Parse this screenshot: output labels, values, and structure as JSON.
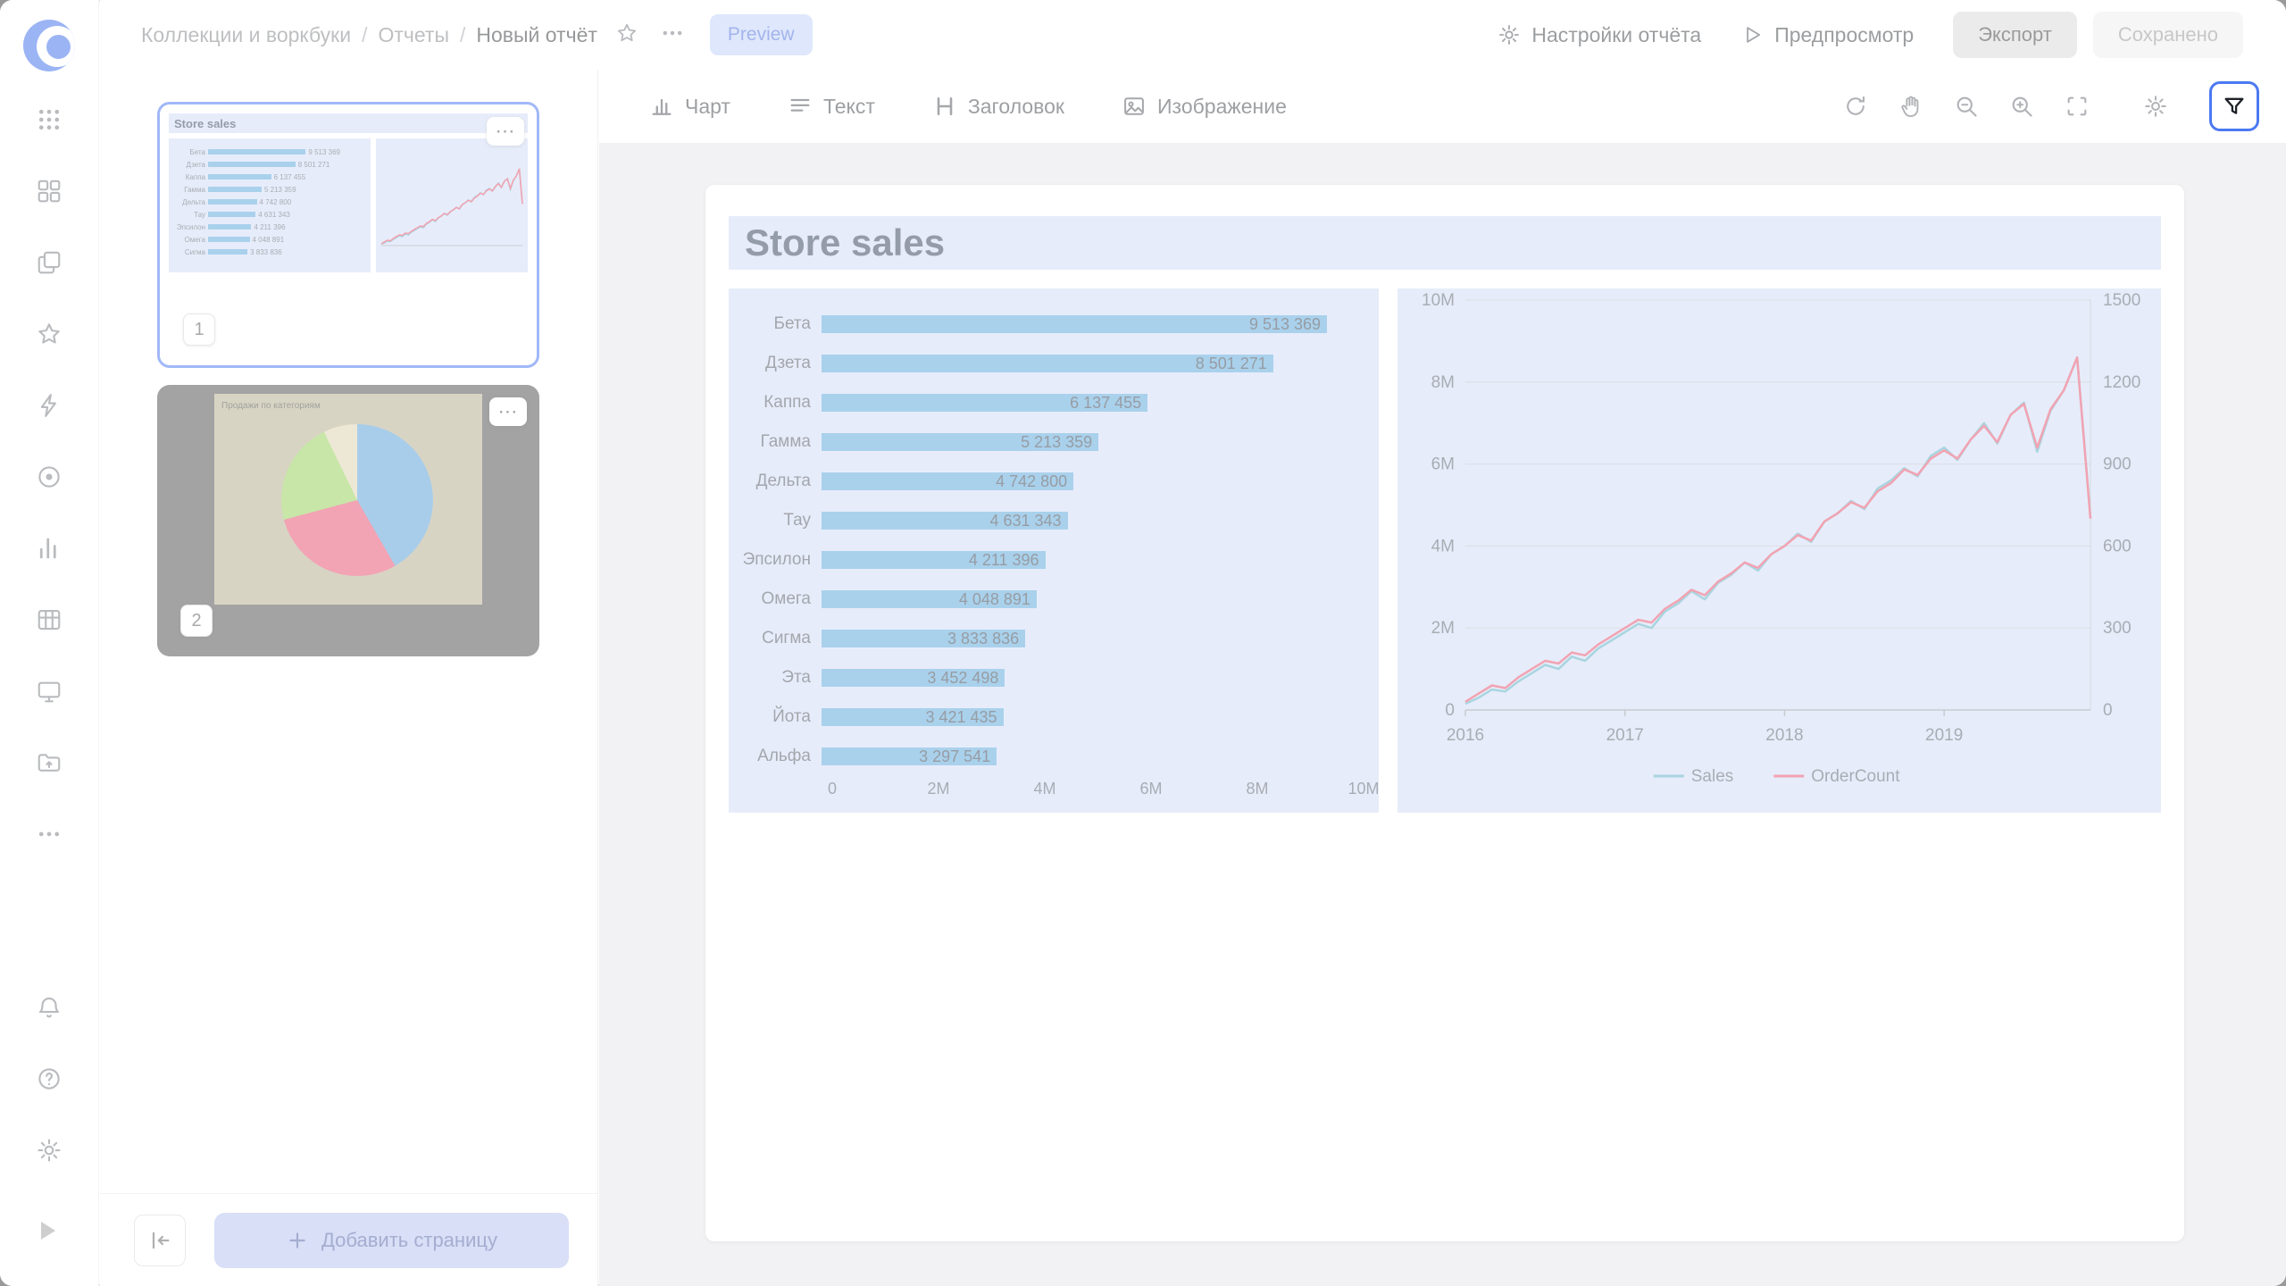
{
  "header": {
    "breadcrumb": {
      "items": [
        "Коллекции и воркбуки",
        "Отчеты",
        "Новый отчёт"
      ],
      "separator": "/"
    },
    "preview_badge": "Preview",
    "actions": {
      "report_settings": "Настройки отчёта",
      "preview": "Предпросмотр",
      "export": "Экспорт",
      "saved": "Сохранено"
    }
  },
  "pages_panel": {
    "pages": [
      {
        "number": "1",
        "selected": true,
        "title": "Store sales"
      },
      {
        "number": "2",
        "selected": false,
        "title": "Продажи по категориям"
      }
    ],
    "menu_dots": "⋯",
    "add_page_label": "Добавить страницу"
  },
  "toolbar": {
    "items": [
      {
        "label": "Чарт"
      },
      {
        "label": "Текст"
      },
      {
        "label": "Заголовок"
      },
      {
        "label": "Изображение"
      }
    ]
  },
  "page": {
    "title": "Store sales"
  },
  "icons": {
    "logo": "datalens-swirl",
    "apps-grid": "3x3-dots",
    "dashboards": "four-squares",
    "collections": "layers",
    "favorites": "star",
    "quick": "lightning",
    "records": "disc",
    "charts": "bar-chart",
    "datasets": "table-grid",
    "editor": "monitor",
    "storage": "folder",
    "more": "ellipsis",
    "notifications": "bell",
    "help": "question-circle",
    "settings": "gear",
    "collapse": "arrow-to-left",
    "add": "plus",
    "report-settings": "gear",
    "run-preview": "play-triangle",
    "refresh": "circular-arrows",
    "pan": "hand",
    "zoom-out": "magnifier-minus",
    "zoom-in": "magnifier-plus",
    "fit": "dashed-corners",
    "canvas-settings": "gear",
    "filters": "funnel",
    "chart-tool": "columns",
    "text-tool": "lines",
    "heading-tool": "H",
    "image-tool": "picture"
  },
  "colors": {
    "accent_blue": "#3b6cf0",
    "filter_ring": "#4b79f2",
    "widget_bg": "#ccd8f4",
    "bar_fill": "#4da0d8",
    "sales_line": "#4aa7be",
    "ordercount_line": "#e4405f",
    "overlay": "rgba(255,255,255,0.52)"
  },
  "chart_data": [
    {
      "type": "bar",
      "title": "Store sales",
      "orientation": "horizontal",
      "categories": [
        "Бета",
        "Дзета",
        "Каппа",
        "Гамма",
        "Дельта",
        "Тау",
        "Эпсилон",
        "Омега",
        "Сигма",
        "Эта",
        "Йота",
        "Альфа"
      ],
      "values": [
        9513369,
        8501271,
        6137455,
        5213359,
        4742800,
        4631343,
        4211396,
        4048891,
        3833836,
        3452498,
        3421435,
        3297541
      ],
      "value_labels": [
        "9 513 369",
        "8 501 271",
        "6 137 455",
        "5 213 359",
        "4 742 800",
        "4 631 343",
        "4 211 396",
        "4 048 891",
        "3 833 836",
        "3 452 498",
        "3 421 435",
        "3 297 541"
      ],
      "x_ticks": [
        "0",
        "2M",
        "4M",
        "6M",
        "8M",
        "10M"
      ],
      "xlim": [
        0,
        10000000
      ],
      "grid": false,
      "bar_color": "#4da0d8"
    },
    {
      "type": "line",
      "x_ticks": [
        "2016",
        "2017",
        "2018",
        "2019"
      ],
      "left_axis": {
        "ticks": [
          "0",
          "2M",
          "4M",
          "6M",
          "8M",
          "10M"
        ],
        "lim": [
          0,
          10000000
        ]
      },
      "right_axis": {
        "ticks": [
          "0",
          "300",
          "600",
          "900",
          "1200",
          "1500"
        ],
        "lim": [
          0,
          1500
        ]
      },
      "legend_position": "bottom",
      "series": [
        {
          "name": "Sales",
          "axis": "left",
          "color": "#4aa7be",
          "values": [
            150000,
            300000,
            500000,
            450000,
            700000,
            900000,
            1100000,
            1000000,
            1300000,
            1200000,
            1500000,
            1700000,
            1900000,
            2100000,
            2000000,
            2400000,
            2600000,
            2900000,
            2700000,
            3100000,
            3300000,
            3600000,
            3400000,
            3800000,
            4000000,
            4300000,
            4100000,
            4600000,
            4800000,
            5100000,
            4900000,
            5400000,
            5600000,
            5900000,
            5700000,
            6200000,
            6400000,
            6100000,
            6600000,
            7000000,
            6500000,
            7200000,
            7500000,
            6300000,
            7300000,
            7800000,
            8600000,
            4700000
          ]
        },
        {
          "name": "OrderCount",
          "axis": "right",
          "color": "#e4405f",
          "values": [
            30,
            60,
            90,
            80,
            120,
            150,
            180,
            170,
            210,
            200,
            240,
            270,
            300,
            330,
            320,
            370,
            400,
            440,
            420,
            470,
            500,
            540,
            520,
            570,
            600,
            640,
            620,
            690,
            720,
            760,
            740,
            800,
            830,
            880,
            860,
            920,
            950,
            920,
            990,
            1040,
            980,
            1080,
            1120,
            960,
            1100,
            1170,
            1290,
            700
          ]
        }
      ]
    },
    {
      "type": "pie",
      "context": "page-2-thumbnail",
      "title": "Продажи по категориям",
      "slices": [
        {
          "color": "#4a97d3",
          "fraction": 0.42
        },
        {
          "color": "#e43f63",
          "fraction": 0.29
        },
        {
          "color": "#8ccb4a",
          "fraction": 0.22
        },
        {
          "color": "#d9d0a8",
          "fraction": 0.07
        }
      ]
    }
  ]
}
